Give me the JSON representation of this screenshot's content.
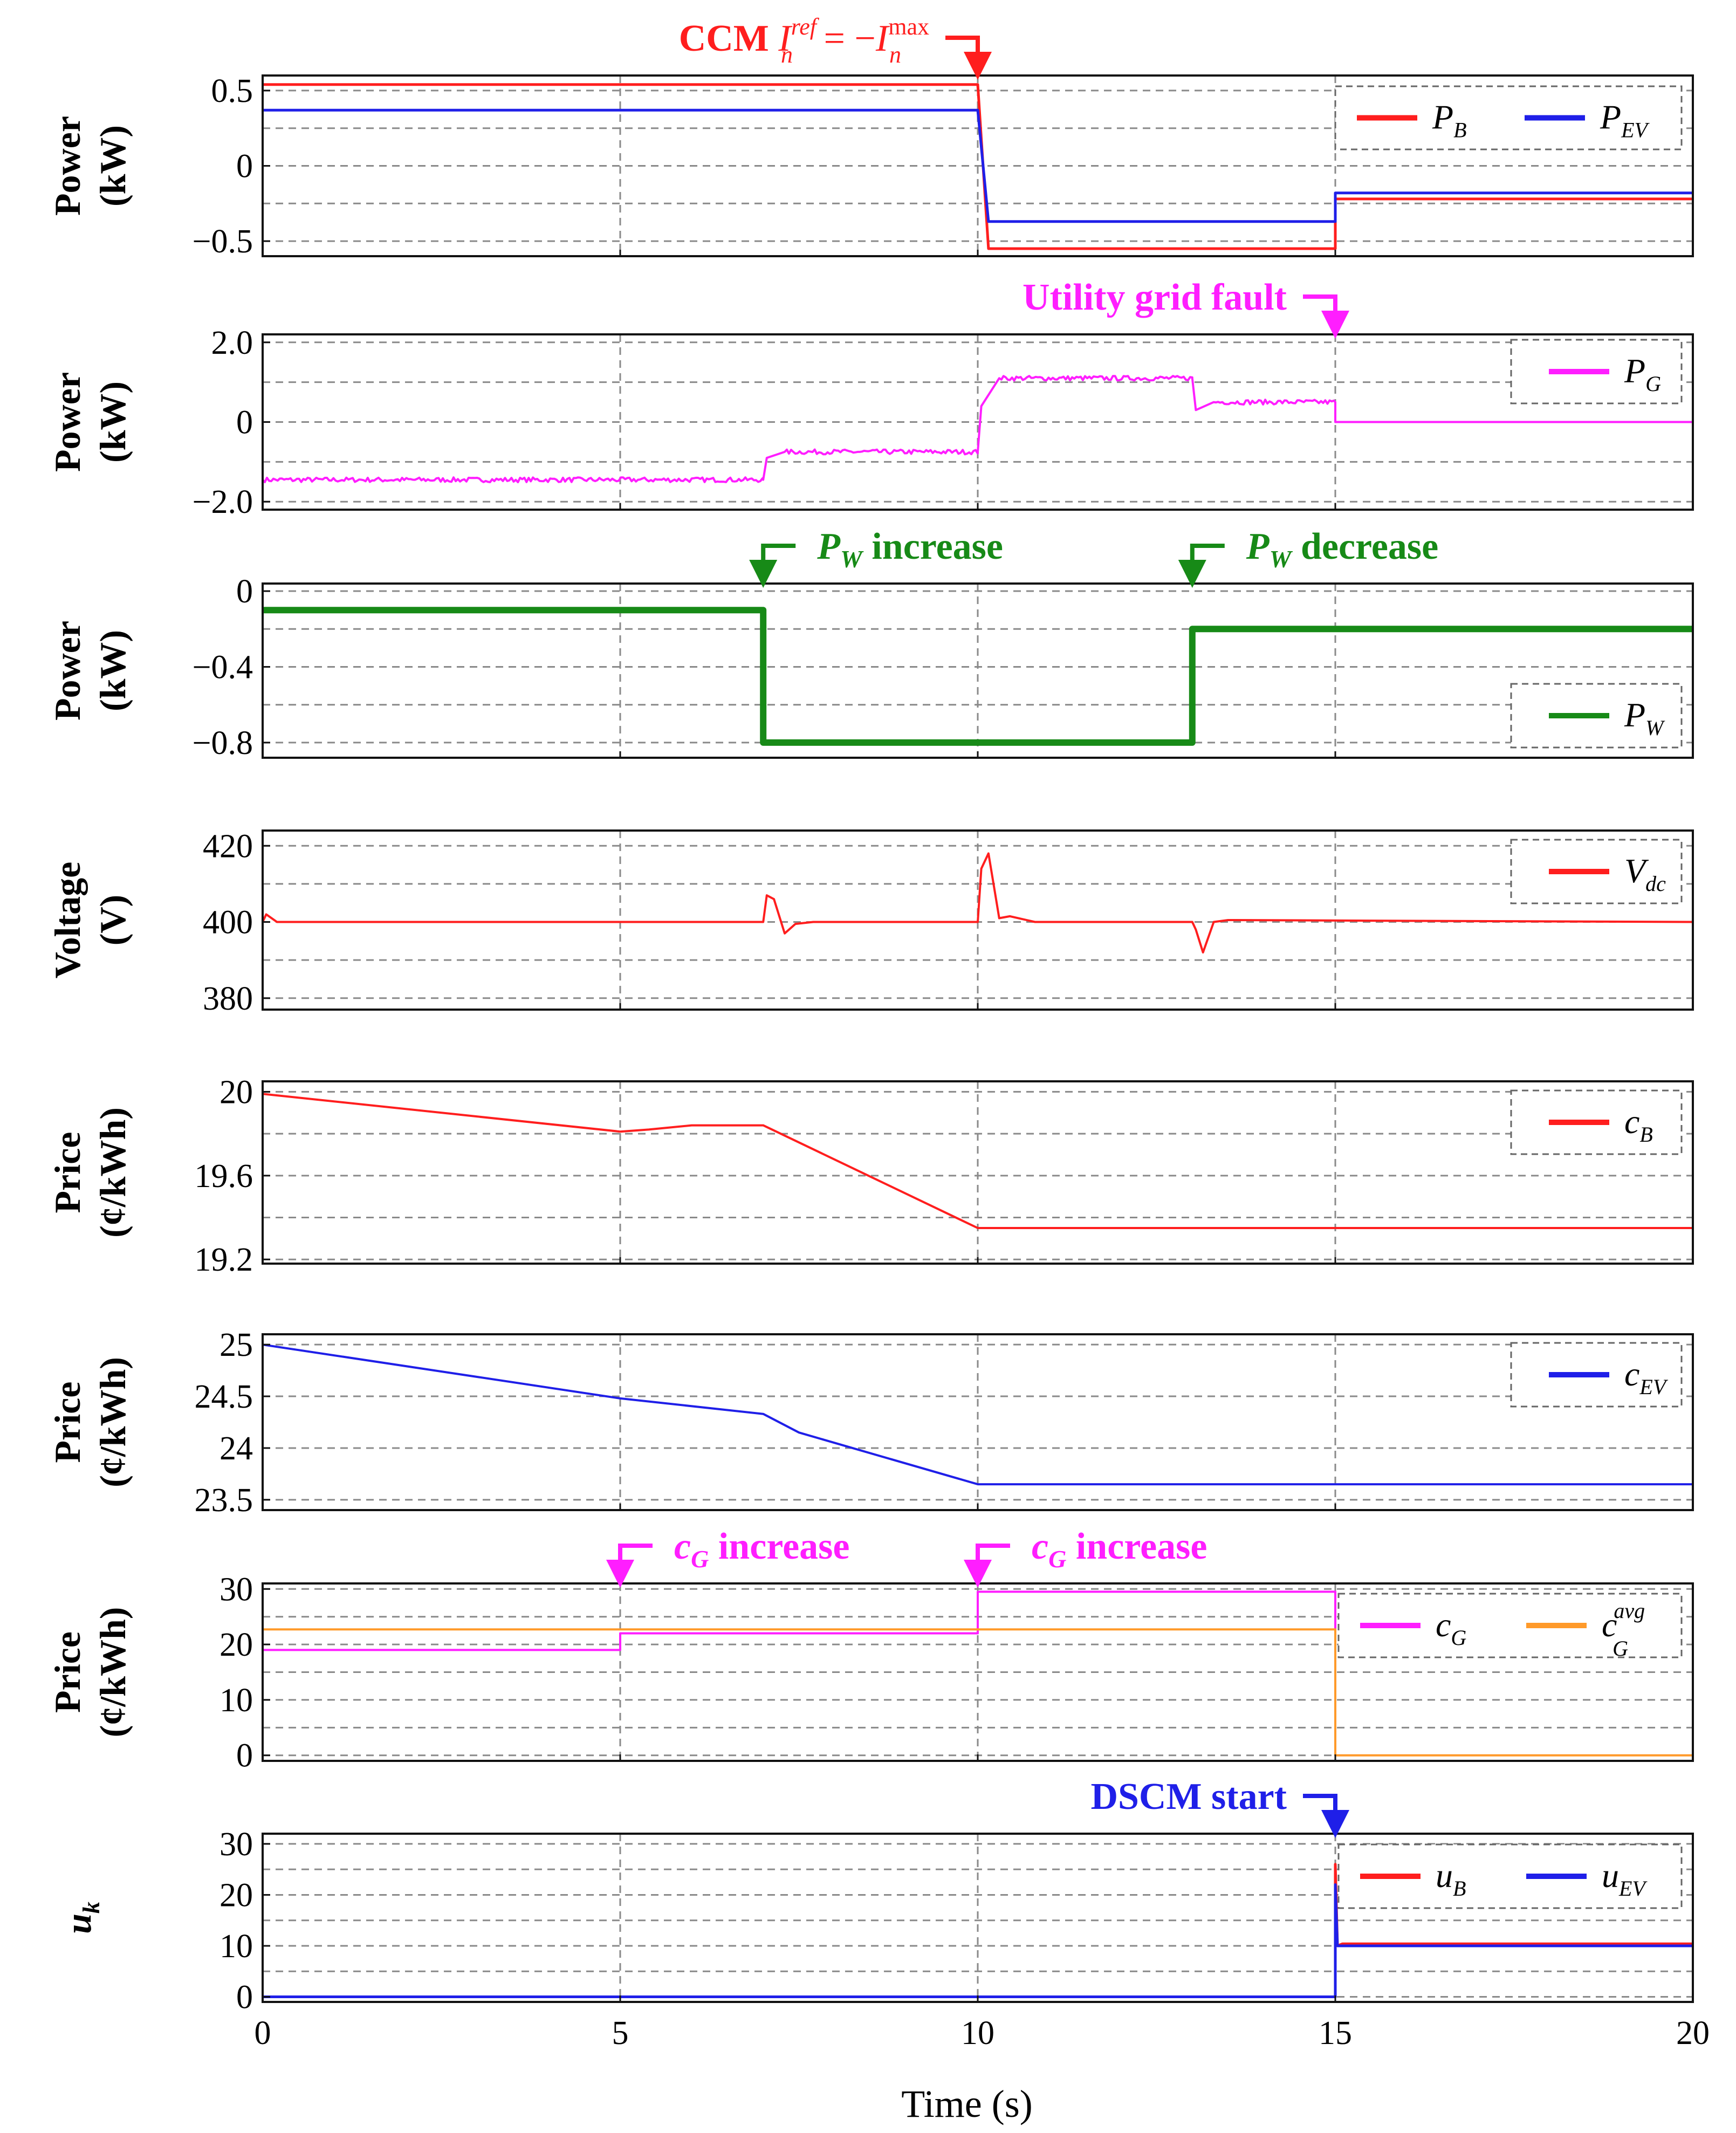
{
  "figure": {
    "xlabel": "Time (s)",
    "xticks": [
      "0",
      "5",
      "10",
      "15",
      "20"
    ],
    "xlim": [
      0,
      20
    ]
  },
  "colors": {
    "red": "#ff1e1e",
    "blue": "#1f1fe8",
    "magenta": "#ff1eff",
    "green": "#178a17",
    "orange": "#ff9a2a"
  },
  "annotations": [
    {
      "panel": 0,
      "t": 10,
      "color": "red",
      "side": "left",
      "text": "CCM ",
      "math": "I_n^ref = −I_n^max",
      "math_parts": {
        "I1": "I",
        "sup1": "ref",
        "sub1": "n",
        "eq": " = −",
        "I2": "I",
        "sup2": "max",
        "sub2": "n"
      }
    },
    {
      "panel": 1,
      "t": 15,
      "color": "magenta",
      "side": "left",
      "text": "Utility grid fault"
    },
    {
      "panel": 2,
      "t": 7,
      "color": "green",
      "side": "right",
      "var": "P",
      "sub": "W",
      "text": " increase"
    },
    {
      "panel": 2,
      "t": 13,
      "color": "green",
      "side": "right",
      "var": "P",
      "sub": "W",
      "text": " decrease"
    },
    {
      "panel": 6,
      "t": 5,
      "color": "magenta",
      "side": "right",
      "var": "c",
      "sub": "G",
      "text": " increase"
    },
    {
      "panel": 6,
      "t": 10,
      "color": "magenta",
      "side": "right",
      "var": "c",
      "sub": "G",
      "text": " increase"
    },
    {
      "panel": 7,
      "t": 15,
      "color": "blue",
      "side": "left",
      "text": "DSCM start"
    }
  ],
  "chart_data": [
    {
      "type": "line",
      "ylabel_top": "Power",
      "ylabel_bottom": "(kW)",
      "ylim": [
        -0.6,
        0.6
      ],
      "yticks": [
        0.5,
        0,
        -0.5
      ],
      "ytick_labels": [
        "0.5",
        "0",
        "−0.5"
      ],
      "hgrid": [
        0.5,
        0.25,
        0,
        -0.25,
        -0.5
      ],
      "legend": [
        {
          "var": "P",
          "sub": "B",
          "color": "red"
        },
        {
          "var": "P",
          "sub": "EV",
          "color": "blue"
        }
      ],
      "series": [
        {
          "name": "P_B",
          "color": "red",
          "x": [
            0,
            10,
            10.15,
            15,
            15,
            20
          ],
          "y": [
            0.54,
            0.54,
            -0.55,
            -0.55,
            -0.22,
            -0.22
          ]
        },
        {
          "name": "P_EV",
          "color": "blue",
          "x": [
            0,
            10,
            10.15,
            15,
            15,
            20
          ],
          "y": [
            0.37,
            0.37,
            -0.37,
            -0.37,
            -0.18,
            -0.18
          ]
        }
      ]
    },
    {
      "type": "line",
      "ylabel_top": "Power",
      "ylabel_bottom": "(kW)",
      "ylim": [
        -2.2,
        2.2
      ],
      "yticks": [
        2.0,
        0,
        -2.0
      ],
      "ytick_labels": [
        "2.0",
        "0",
        "−2.0"
      ],
      "hgrid": [
        2,
        1,
        0,
        -1,
        -2
      ],
      "legend": [
        {
          "var": "P",
          "sub": "G",
          "color": "magenta"
        }
      ],
      "series": [
        {
          "name": "P_G",
          "color": "magenta",
          "x": [
            0,
            7,
            7.05,
            7.3,
            10,
            10.05,
            10.3,
            13,
            13.05,
            13.3,
            15,
            15,
            20
          ],
          "y": [
            -1.45,
            -1.45,
            -0.9,
            -0.75,
            -0.75,
            0.4,
            1.1,
            1.1,
            0.3,
            0.5,
            0.5,
            0,
            0
          ]
        }
      ]
    },
    {
      "type": "line",
      "ylabel_top": "Power",
      "ylabel_bottom": "(kW)",
      "ylim": [
        -0.88,
        0.04
      ],
      "yticks": [
        0,
        -0.4,
        -0.8
      ],
      "ytick_labels": [
        "0",
        "−0.4",
        "−0.8"
      ],
      "hgrid": [
        0,
        -0.2,
        -0.4,
        -0.6,
        -0.8
      ],
      "legend": [
        {
          "var": "P",
          "sub": "W",
          "color": "green"
        }
      ],
      "series": [
        {
          "name": "P_W",
          "color": "green",
          "x": [
            0,
            7,
            7,
            13,
            13,
            20
          ],
          "y": [
            -0.1,
            -0.1,
            -0.8,
            -0.8,
            -0.2,
            -0.2
          ]
        }
      ]
    },
    {
      "type": "line",
      "ylabel_top": "Voltage",
      "ylabel_bottom": "(V)",
      "ylim": [
        377,
        424
      ],
      "yticks": [
        420,
        400,
        380
      ],
      "ytick_labels": [
        "420",
        "400",
        "380"
      ],
      "hgrid": [
        420,
        410,
        400,
        390,
        380
      ],
      "legend": [
        {
          "var": "V",
          "sub": "dc",
          "color": "red"
        }
      ],
      "series": [
        {
          "name": "V_dc",
          "color": "red",
          "x": [
            0,
            0.05,
            0.2,
            1,
            7,
            7.05,
            7.15,
            7.3,
            7.45,
            7.7,
            10,
            10.05,
            10.15,
            10.3,
            10.45,
            10.8,
            13,
            13.05,
            13.15,
            13.3,
            13.5,
            20
          ],
          "y": [
            400,
            402,
            400,
            400,
            400,
            407,
            406,
            397,
            399.5,
            400,
            400,
            414,
            418,
            401,
            401.5,
            400,
            400,
            398,
            392,
            400,
            400.5,
            400
          ]
        }
      ]
    },
    {
      "type": "line",
      "ylabel_top": "Price",
      "ylabel_bottom": "(¢/kWh)",
      "ylim": [
        19.18,
        20.05
      ],
      "yticks": [
        20,
        19.6,
        19.2
      ],
      "ytick_labels": [
        "20",
        "19.6",
        "19.2"
      ],
      "hgrid": [
        20,
        19.8,
        19.6,
        19.4,
        19.2
      ],
      "legend": [
        {
          "var": "c",
          "sub": "B",
          "color": "red"
        }
      ],
      "series": [
        {
          "name": "c_B",
          "color": "red",
          "x": [
            0,
            5,
            5.4,
            6,
            7,
            10,
            20
          ],
          "y": [
            19.99,
            19.81,
            19.82,
            19.84,
            19.84,
            19.35,
            19.35
          ]
        }
      ]
    },
    {
      "type": "line",
      "ylabel_top": "Price",
      "ylabel_bottom": "(¢/kWh)",
      "ylim": [
        23.4,
        25.1
      ],
      "yticks": [
        25,
        24.5,
        24,
        23.5
      ],
      "ytick_labels": [
        "25",
        "24.5",
        "24",
        "23.5"
      ],
      "hgrid": [
        25,
        24.5,
        24,
        23.5
      ],
      "legend": [
        {
          "var": "c",
          "sub": "EV",
          "color": "blue"
        }
      ],
      "series": [
        {
          "name": "c_EV",
          "color": "blue",
          "x": [
            0,
            5,
            7,
            7.5,
            10,
            20
          ],
          "y": [
            25,
            24.48,
            24.33,
            24.15,
            23.65,
            23.65
          ]
        }
      ]
    },
    {
      "type": "line",
      "ylabel_top": "Price",
      "ylabel_bottom": "(¢/kWh)",
      "ylim": [
        -1,
        31
      ],
      "yticks": [
        30,
        20,
        10,
        0
      ],
      "ytick_labels": [
        "30",
        "20",
        "10",
        "0"
      ],
      "hgrid": [
        30,
        25,
        20,
        15,
        10,
        5,
        0
      ],
      "legend": [
        {
          "var": "c",
          "sub": "G",
          "color": "magenta"
        },
        {
          "var": "c",
          "sub": "G",
          "sup": "avg",
          "color": "orange"
        }
      ],
      "series": [
        {
          "name": "c_G",
          "color": "magenta",
          "x": [
            0,
            5,
            5,
            10,
            10,
            15,
            15
          ],
          "y": [
            19,
            19,
            22,
            22,
            29.5,
            29.5,
            22.5
          ]
        },
        {
          "name": "c_G^avg",
          "color": "orange",
          "x": [
            0,
            15,
            15,
            20
          ],
          "y": [
            22.7,
            22.7,
            0,
            0
          ]
        }
      ]
    },
    {
      "type": "line",
      "ylabel_top": "u",
      "ylabel_sub": "k",
      "ylim": [
        -1,
        32
      ],
      "yticks": [
        30,
        20,
        10,
        0
      ],
      "ytick_labels": [
        "30",
        "20",
        "10",
        "0"
      ],
      "hgrid": [
        30,
        25,
        20,
        15,
        10,
        5,
        0
      ],
      "legend": [
        {
          "var": "u",
          "sub": "B",
          "color": "red"
        },
        {
          "var": "u",
          "sub": "EV",
          "color": "blue"
        }
      ],
      "series": [
        {
          "name": "u_B",
          "color": "red",
          "x": [
            0,
            15,
            15,
            15.03,
            15.1,
            20
          ],
          "y": [
            0,
            0,
            26,
            10,
            10.4,
            10.4
          ]
        },
        {
          "name": "u_EV",
          "color": "blue",
          "x": [
            0,
            15,
            15,
            15.03,
            15.1,
            20
          ],
          "y": [
            0,
            0,
            22,
            10,
            10,
            10
          ]
        }
      ]
    }
  ]
}
